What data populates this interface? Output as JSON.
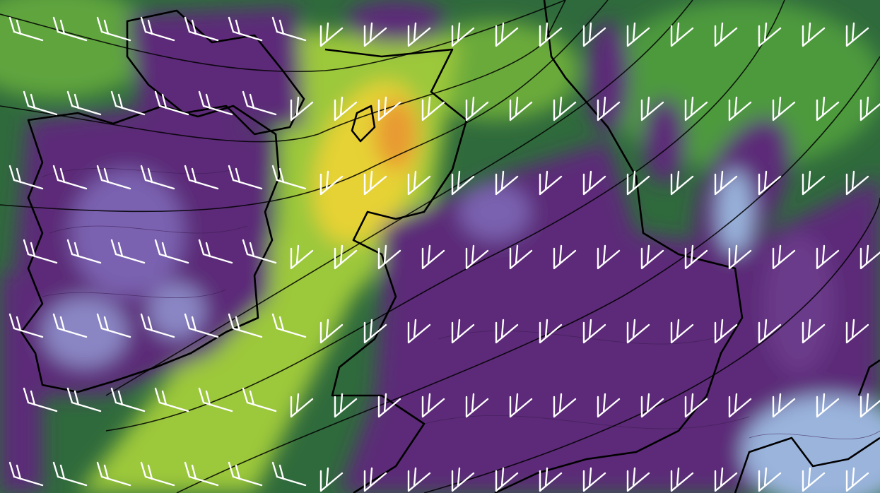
{
  "map": {
    "colors": {
      "background_green": "#2f6a3c",
      "mid_green": "#4e9a3c",
      "light_green": "#9cc83a",
      "yellow": "#e6d234",
      "orange": "#e89a32",
      "purple": "#5b2a78",
      "lavender": "#8a86c4",
      "light_blue": "#9ab4dc",
      "wind_barb": "#ffffff",
      "coastline": "#000000"
    },
    "icons": [
      "wind-barb-icon"
    ]
  }
}
